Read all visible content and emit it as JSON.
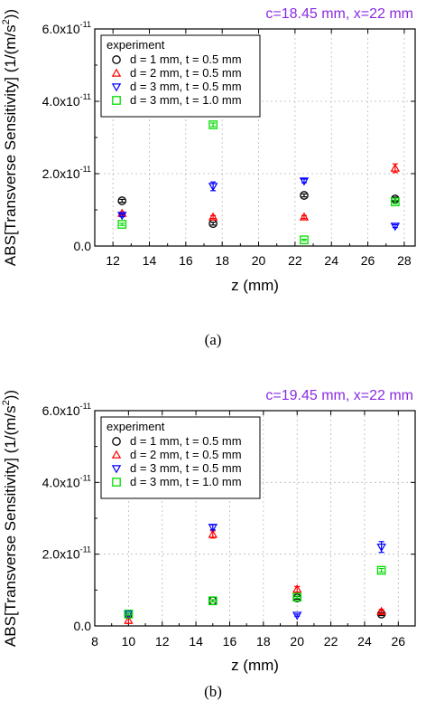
{
  "chart_data": [
    {
      "type": "scatter",
      "title": "c=18.45 mm, x=22 mm",
      "caption": "(a)",
      "xlabel": "z (mm)",
      "ylabel": "ABS[Transverse Sensitivity] (1/(m/s",
      "ylabel_sup": "2",
      "ylabel_end": "))",
      "xlim": [
        11,
        28.6
      ],
      "ylim": [
        0,
        6e-11
      ],
      "xticks": [
        12,
        14,
        16,
        18,
        20,
        22,
        24,
        26,
        28
      ],
      "xtick_labels": [
        "12",
        "14",
        "16",
        "18",
        "20",
        "22",
        "24",
        "26",
        "28"
      ],
      "yticks": [
        0,
        2e-11,
        4e-11,
        6e-11
      ],
      "ytick_labels": [
        {
          "base": "0.0",
          "exp": ""
        },
        {
          "base": "2.0x10",
          "exp": "-11"
        },
        {
          "base": "4.0x10",
          "exp": "-11"
        },
        {
          "base": "6.0x10",
          "exp": "-11"
        }
      ],
      "grid": true,
      "legend": {
        "title": "experiment",
        "position": "top-left",
        "entries": [
          "d = 1 mm, t = 0.5 mm",
          "d = 2 mm, t = 0.5 mm",
          "d = 3 mm, t = 0.5 mm",
          "d = 3 mm, t = 1.0 mm"
        ]
      },
      "series": [
        {
          "label": "d = 1 mm, t = 0.5 mm",
          "marker": "circle",
          "color": "#000000",
          "x": [
            12.5,
            17.5,
            22.5,
            27.5
          ],
          "y": [
            1.25e-11,
            6.2e-12,
            1.4e-11,
            1.3e-11
          ],
          "err": [
            4e-13,
            4e-13,
            4e-13,
            5e-13
          ]
        },
        {
          "label": "d = 2 mm, t = 0.5 mm",
          "marker": "triangle-up",
          "color": "#ff0000",
          "x": [
            12.5,
            17.5,
            22.5,
            27.5
          ],
          "y": [
            9e-12,
            8e-12,
            8e-12,
            2.15e-11
          ],
          "err": [
            4e-13,
            4e-13,
            4e-13,
            1.2e-12
          ]
        },
        {
          "label": "d = 3 mm, t = 0.5 mm",
          "marker": "triangle-down",
          "color": "#0000ff",
          "x": [
            12.5,
            17.5,
            22.5,
            27.5
          ],
          "y": [
            8.5e-12,
            1.65e-11,
            1.8e-11,
            5.5e-12
          ],
          "err": [
            4e-13,
            1.2e-12,
            5e-13,
            4e-13
          ]
        },
        {
          "label": "d = 3 mm, t = 1.0 mm",
          "marker": "square",
          "color": "#00dd00",
          "x": [
            12.5,
            17.5,
            22.5,
            27.5
          ],
          "y": [
            6e-12,
            3.35e-11,
            1.7e-12,
            1.22e-11
          ],
          "err": [
            3e-13,
            5e-13,
            2e-13,
            5e-13
          ]
        }
      ]
    },
    {
      "type": "scatter",
      "title": "c=19.45 mm, x=22 mm",
      "caption": "(b)",
      "xlabel": "z (mm)",
      "ylabel": "ABS[Transverse Sensitivity] (1/(m/s",
      "ylabel_sup": "2",
      "ylabel_end": "))",
      "xlim": [
        8,
        27
      ],
      "ylim": [
        0,
        6e-11
      ],
      "xticks": [
        8,
        10,
        12,
        14,
        16,
        18,
        20,
        22,
        24,
        26
      ],
      "xtick_labels": [
        "8",
        "10",
        "12",
        "14",
        "16",
        "18",
        "20",
        "22",
        "24",
        "26"
      ],
      "yticks": [
        0,
        2e-11,
        4e-11,
        6e-11
      ],
      "ytick_labels": [
        {
          "base": "0.0",
          "exp": ""
        },
        {
          "base": "2.0x10",
          "exp": "-11"
        },
        {
          "base": "4.0x10",
          "exp": "-11"
        },
        {
          "base": "6.0x10",
          "exp": "-11"
        }
      ],
      "grid": true,
      "legend": {
        "title": "experiment",
        "position": "top-left",
        "entries": [
          "d = 1 mm, t = 0.5 mm",
          "d = 2 mm, t = 0.5 mm",
          "d = 3 mm, t = 0.5 mm",
          "d = 3 mm, t = 1.0 mm"
        ]
      },
      "series": [
        {
          "label": "d = 1 mm, t = 0.5 mm",
          "marker": "circle",
          "color": "#000000",
          "x": [
            10,
            15,
            20,
            25
          ],
          "y": [
            3.3e-12,
            7e-12,
            7.8e-12,
            3.3e-12
          ],
          "err": [
            3e-13,
            3e-13,
            4e-13,
            4e-13
          ]
        },
        {
          "label": "d = 2 mm, t = 0.5 mm",
          "marker": "triangle-up",
          "color": "#ff0000",
          "x": [
            10,
            15,
            20,
            25
          ],
          "y": [
            1.5e-12,
            2.55e-11,
            1.02e-11,
            4e-12
          ],
          "err": [
            8e-13,
            1e-12,
            8e-13,
            6e-13
          ]
        },
        {
          "label": "d = 3 mm, t = 0.5 mm",
          "marker": "triangle-down",
          "color": "#0000ff",
          "x": [
            10,
            15,
            20,
            25
          ],
          "y": [
            3.3e-12,
            2.75e-11,
            3e-12,
            2.2e-11
          ],
          "err": [
            3e-13,
            7e-13,
            3e-13,
            1.5e-12
          ]
        },
        {
          "label": "d = 3 mm, t = 1.0 mm",
          "marker": "square",
          "color": "#00dd00",
          "x": [
            10,
            15,
            20,
            25
          ],
          "y": [
            3.3e-12,
            7e-12,
            8e-12,
            1.55e-11
          ],
          "err": [
            3e-13,
            3e-13,
            3e-13,
            5e-13
          ]
        }
      ]
    }
  ]
}
